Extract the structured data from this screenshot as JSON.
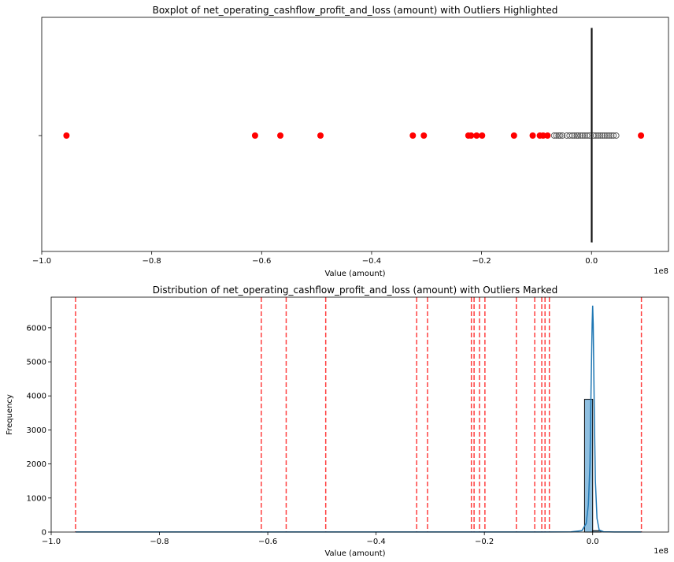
{
  "chart_data": [
    {
      "type": "boxplot",
      "title": "Boxplot of net_operating_cashflow_profit_and_loss (amount) with Outliers Highlighted",
      "xlabel": "Value (amount)",
      "ylabel": "",
      "x_offset_label": "1e8",
      "xlim": [
        -1.0,
        0.14
      ],
      "x_ticks": [
        -1.0,
        -0.8,
        -0.6,
        -0.4,
        -0.2,
        0.0
      ],
      "x_tick_labels": [
        "−1.0",
        "−0.8",
        "−0.6",
        "−0.4",
        "−0.2",
        "0.0"
      ],
      "box": {
        "q1": -0.0003,
        "median": 0.0,
        "q3": 0.0003,
        "whisker_low": -0.0008,
        "whisker_high": 0.0008
      },
      "fliers": [
        -0.068,
        -0.064,
        -0.06,
        -0.057,
        -0.053,
        -0.045,
        -0.04,
        -0.035,
        -0.031,
        -0.027,
        -0.024,
        -0.02,
        -0.016,
        -0.012,
        -0.008,
        -0.004,
        0.004,
        0.008,
        0.012,
        0.016,
        0.02,
        0.024,
        0.028,
        0.032,
        0.036,
        0.04,
        0.045
      ],
      "outliers_highlighted": [
        -0.955,
        -0.612,
        -0.566,
        -0.493,
        -0.325,
        -0.305,
        -0.224,
        -0.219,
        -0.209,
        -0.199,
        -0.141,
        -0.107,
        -0.094,
        -0.088,
        -0.08,
        0.09
      ],
      "flier_color": "#555555",
      "outlier_color": "#ff0000"
    },
    {
      "type": "histogram",
      "title": "Distribution of net_operating_cashflow_profit_and_loss (amount) with Outliers Marked",
      "xlabel": "Value (amount)",
      "ylabel": "Frequency",
      "x_offset_label": "1e8",
      "xlim": [
        -1.0,
        0.14
      ],
      "ylim": [
        0,
        6900
      ],
      "x_ticks": [
        -1.0,
        -0.8,
        -0.6,
        -0.4,
        -0.2,
        0.0
      ],
      "x_tick_labels": [
        "−1.0",
        "−0.8",
        "−0.6",
        "−0.4",
        "−0.2",
        "0.0"
      ],
      "y_ticks": [
        0,
        1000,
        2000,
        3000,
        4000,
        5000,
        6000
      ],
      "y_tick_labels": [
        "0",
        "1000",
        "2000",
        "3000",
        "4000",
        "5000",
        "6000"
      ],
      "bins": [
        {
          "x0": -0.015,
          "x1": 0.0,
          "count": 3900
        },
        {
          "x0": 0.0,
          "x1": 0.015,
          "count": 40
        }
      ],
      "kde": [
        [
          -0.955,
          2
        ],
        [
          -0.6,
          2
        ],
        [
          -0.3,
          2
        ],
        [
          -0.1,
          3
        ],
        [
          -0.04,
          5
        ],
        [
          -0.02,
          40
        ],
        [
          -0.012,
          250
        ],
        [
          -0.008,
          800
        ],
        [
          -0.005,
          2000
        ],
        [
          -0.003,
          4200
        ],
        [
          -0.001,
          6100
        ],
        [
          0.0,
          6650
        ],
        [
          0.001,
          6100
        ],
        [
          0.003,
          3500
        ],
        [
          0.005,
          1500
        ],
        [
          0.008,
          400
        ],
        [
          0.012,
          60
        ],
        [
          0.02,
          10
        ],
        [
          0.04,
          4
        ],
        [
          0.09,
          2
        ]
      ],
      "outlier_lines": [
        -0.955,
        -0.612,
        -0.566,
        -0.493,
        -0.325,
        -0.305,
        -0.224,
        -0.219,
        -0.209,
        -0.199,
        -0.141,
        -0.107,
        -0.094,
        -0.088,
        -0.08,
        0.09
      ],
      "bar_color": "#8fbfe0",
      "kde_color": "#1f77b4",
      "line_color": "#ff0000"
    }
  ]
}
